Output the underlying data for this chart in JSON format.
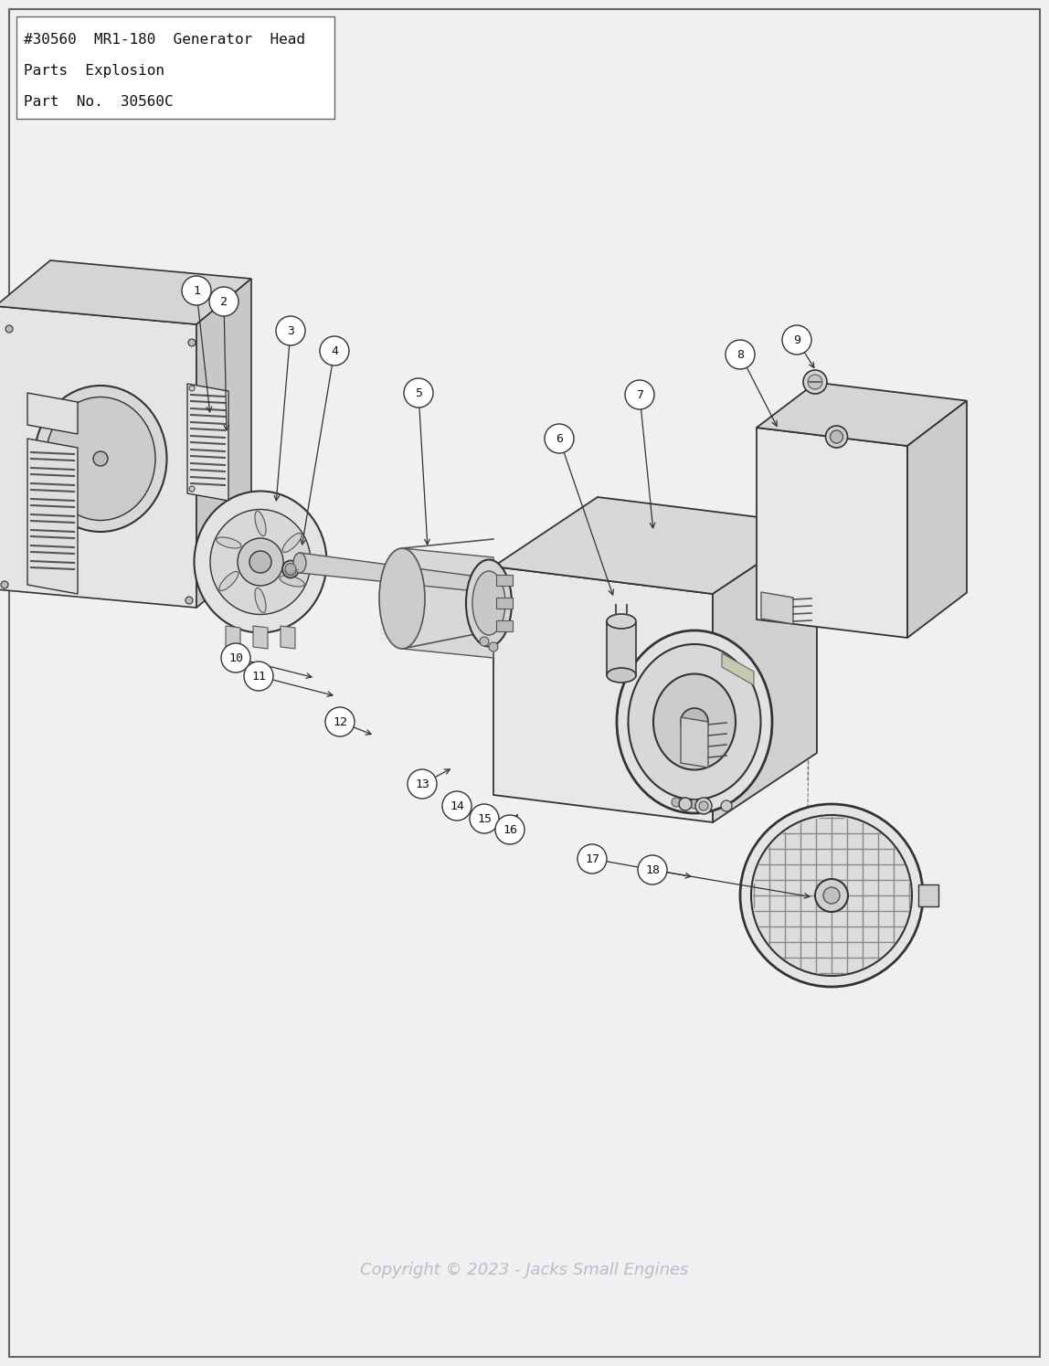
{
  "title_lines": [
    "#30560  MR1-180  Generator  Head",
    "Parts  Explosion",
    "Part  No.  30560C"
  ],
  "copyright": "Copyright © 2023 - Jacks Small Engines",
  "bg_color": "#f0f0f0",
  "line_color": "#333333",
  "part_circles": [
    [
      215,
      318,
      1
    ],
    [
      245,
      330,
      2
    ],
    [
      318,
      362,
      3
    ],
    [
      366,
      384,
      4
    ],
    [
      458,
      430,
      5
    ],
    [
      612,
      480,
      6
    ],
    [
      700,
      432,
      7
    ],
    [
      810,
      388,
      8
    ],
    [
      872,
      372,
      9
    ],
    [
      258,
      720,
      10
    ],
    [
      283,
      740,
      11
    ],
    [
      372,
      790,
      12
    ],
    [
      462,
      858,
      13
    ],
    [
      500,
      882,
      14
    ],
    [
      530,
      896,
      15
    ],
    [
      558,
      908,
      16
    ],
    [
      648,
      940,
      17
    ],
    [
      714,
      952,
      18
    ]
  ]
}
